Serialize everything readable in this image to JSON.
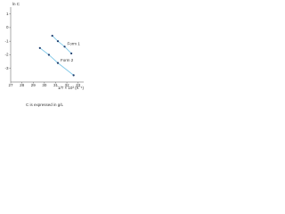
{
  "chart_data": {
    "type": "line",
    "y_label": "ln C",
    "x_label": "1/T × 10³ (K⁻¹)",
    "caption": "C is expressed in g/L",
    "xlim": [
      27,
      33.5
    ],
    "xticks": [
      27,
      28,
      29,
      30,
      31,
      32,
      33
    ],
    "ylim": [
      -4,
      1.5
    ],
    "yticks": [
      1,
      0,
      -1,
      -2,
      -3
    ],
    "series": [
      {
        "name": "Form 1",
        "color": "#7fc8e8",
        "marker_color": "#1b3a6b",
        "x": [
          30.7,
          31.2,
          31.8,
          32.4
        ],
        "values": [
          -0.6,
          -1.0,
          -1.4,
          -1.9
        ]
      },
      {
        "name": "Form 2",
        "color": "#7fc8e8",
        "marker_color": "#1b3a6b",
        "x": [
          29.6,
          30.4,
          31.2,
          32.6
        ],
        "values": [
          -1.5,
          -2.0,
          -2.6,
          -3.5
        ]
      }
    ]
  }
}
